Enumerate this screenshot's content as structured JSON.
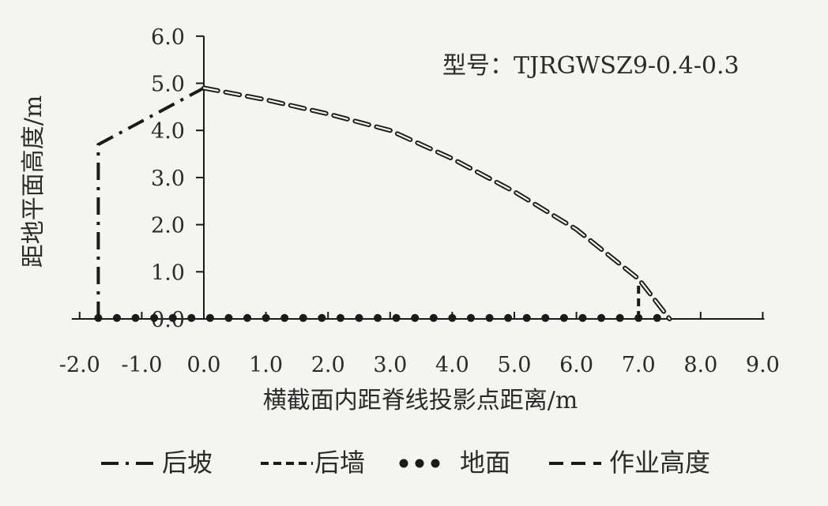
{
  "chart_data": {
    "type": "line",
    "annotation": "型号：TJRGWSZ9-0.4-0.3",
    "xlabel": "横截面内距脊线投影点距离/m",
    "ylabel": "距地平面高度/m",
    "xlim": [
      -2.0,
      9.0
    ],
    "ylim": [
      0.0,
      6.0
    ],
    "x_ticks": [
      "-2.0",
      "-1.0",
      "0.0",
      "1.0",
      "2.0",
      "3.0",
      "4.0",
      "5.0",
      "6.0",
      "7.0",
      "8.0",
      "9.0"
    ],
    "y_ticks": [
      "0.0",
      "1.0",
      "2.0",
      "3.0",
      "4.0",
      "5.0",
      "6.0"
    ],
    "grid": false,
    "legend_position": "bottom",
    "series": [
      {
        "name": "后坡",
        "style": "dash-dot",
        "color": "#1a1a1a",
        "x": [
          -1.7,
          -1.7,
          0.0
        ],
        "y": [
          0.0,
          3.7,
          4.9
        ]
      },
      {
        "name": "后墙",
        "style": "dash",
        "color": "#1a1a1a",
        "x": [
          7.0,
          7.0
        ],
        "y": [
          0.0,
          0.8
        ]
      },
      {
        "name": "地面",
        "style": "dots",
        "color": "#1a1a1a",
        "x": [
          -1.7,
          -1.4,
          -1.1,
          -0.8,
          -0.5,
          -0.2,
          0.1,
          0.4,
          0.7,
          1.0,
          1.3,
          1.6,
          1.9,
          2.2,
          2.5,
          2.8,
          3.1,
          3.4,
          3.7,
          4.0,
          4.3,
          4.6,
          4.9,
          5.2,
          5.5,
          5.8,
          6.1,
          6.4,
          6.7,
          7.0,
          7.3
        ],
        "y": [
          0.02,
          0.02,
          0.02,
          0.02,
          0.02,
          0.02,
          0.02,
          0.02,
          0.02,
          0.02,
          0.02,
          0.02,
          0.02,
          0.02,
          0.02,
          0.02,
          0.02,
          0.02,
          0.02,
          0.02,
          0.02,
          0.02,
          0.02,
          0.02,
          0.02,
          0.02,
          0.02,
          0.02,
          0.02,
          0.02,
          0.02
        ]
      },
      {
        "name": "作业高度",
        "style": "hollow-dash",
        "color": "#1a1a1a",
        "x": [
          0.0,
          1.0,
          2.0,
          3.0,
          4.0,
          5.0,
          6.0,
          7.0,
          7.5
        ],
        "y": [
          4.9,
          4.65,
          4.35,
          4.0,
          3.4,
          2.7,
          1.9,
          0.85,
          0.0
        ]
      }
    ]
  }
}
